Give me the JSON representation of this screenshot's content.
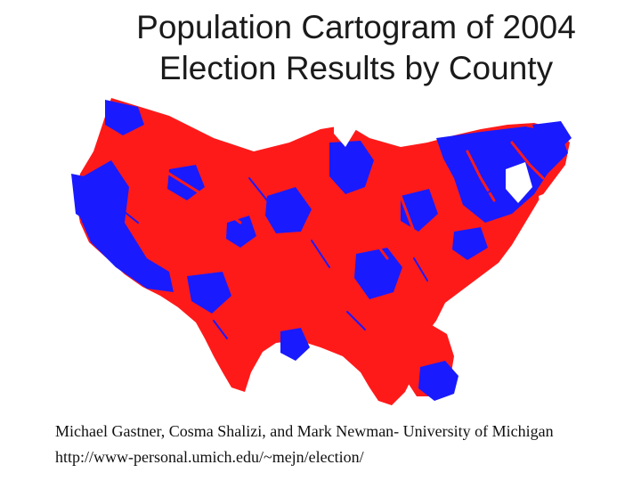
{
  "slide": {
    "title_line1": "Population Cartogram of 2004",
    "title_line2": "Election Results by County",
    "credit": "Michael Gastner, Cosma Shalizi, and Mark Newman- University of Michigan",
    "url": "http://www-personal.umich.edu/~mejn/election/"
  },
  "map": {
    "colors": {
      "republican": "#ff1a1a",
      "democrat": "#1a1aff",
      "background": "#ffffff"
    }
  }
}
